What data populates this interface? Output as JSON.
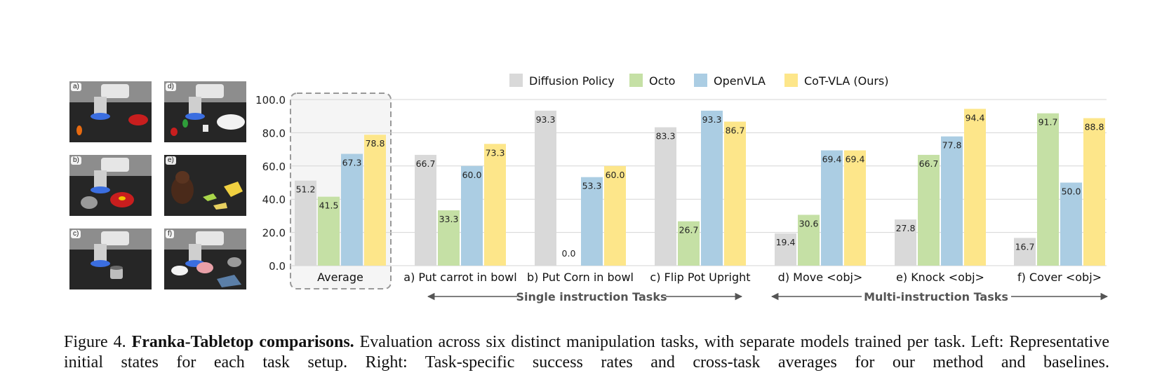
{
  "thumbnails": [
    {
      "label": "a)"
    },
    {
      "label": "d)"
    },
    {
      "label": "b)"
    },
    {
      "label": "e)"
    },
    {
      "label": "c)"
    },
    {
      "label": "f)"
    }
  ],
  "chart_data": {
    "type": "bar",
    "categories": [
      "Average",
      "a) Put carrot in bowl",
      "b) Put Corn in bowl",
      "c) Flip Pot Upright",
      "d) Move <obj>",
      "e) Knock <obj>",
      "f) Cover <obj>"
    ],
    "series": [
      {
        "name": "Diffusion Policy",
        "color": "#d9d9d9",
        "values": [
          51.2,
          66.7,
          93.3,
          83.3,
          19.4,
          27.8,
          16.7
        ]
      },
      {
        "name": "Octo",
        "color": "#c5e0a5",
        "values": [
          41.5,
          33.3,
          0.0,
          26.7,
          30.6,
          66.7,
          91.7
        ]
      },
      {
        "name": "OpenVLA",
        "color": "#abcde3",
        "values": [
          67.3,
          60.0,
          53.3,
          93.3,
          69.4,
          77.8,
          50.0
        ]
      },
      {
        "name": "CoT-VLA (Ours)",
        "color": "#fde68a",
        "values": [
          78.8,
          73.3,
          60.0,
          86.7,
          69.4,
          94.4,
          88.8
        ]
      }
    ],
    "yticks": [
      "0.0",
      "20.0",
      "40.0",
      "60.0",
      "80.0",
      "100.0"
    ],
    "ylim": [
      0,
      100
    ],
    "legend_position": "top",
    "grid": true,
    "groups": [
      {
        "label": "Single instruction Tasks",
        "from": 1,
        "to": 3
      },
      {
        "label": "Multi-instruction Tasks",
        "from": 4,
        "to": 6
      }
    ]
  },
  "caption": {
    "prefix": "Figure 4. ",
    "bold": "Franka-Tabletop comparisons.",
    "text": " Evaluation across six distinct manipulation tasks, with separate models trained per task. Left: Representative initial states for each task setup. Right: Task-specific success rates and cross-task averages for our method and baselines."
  }
}
